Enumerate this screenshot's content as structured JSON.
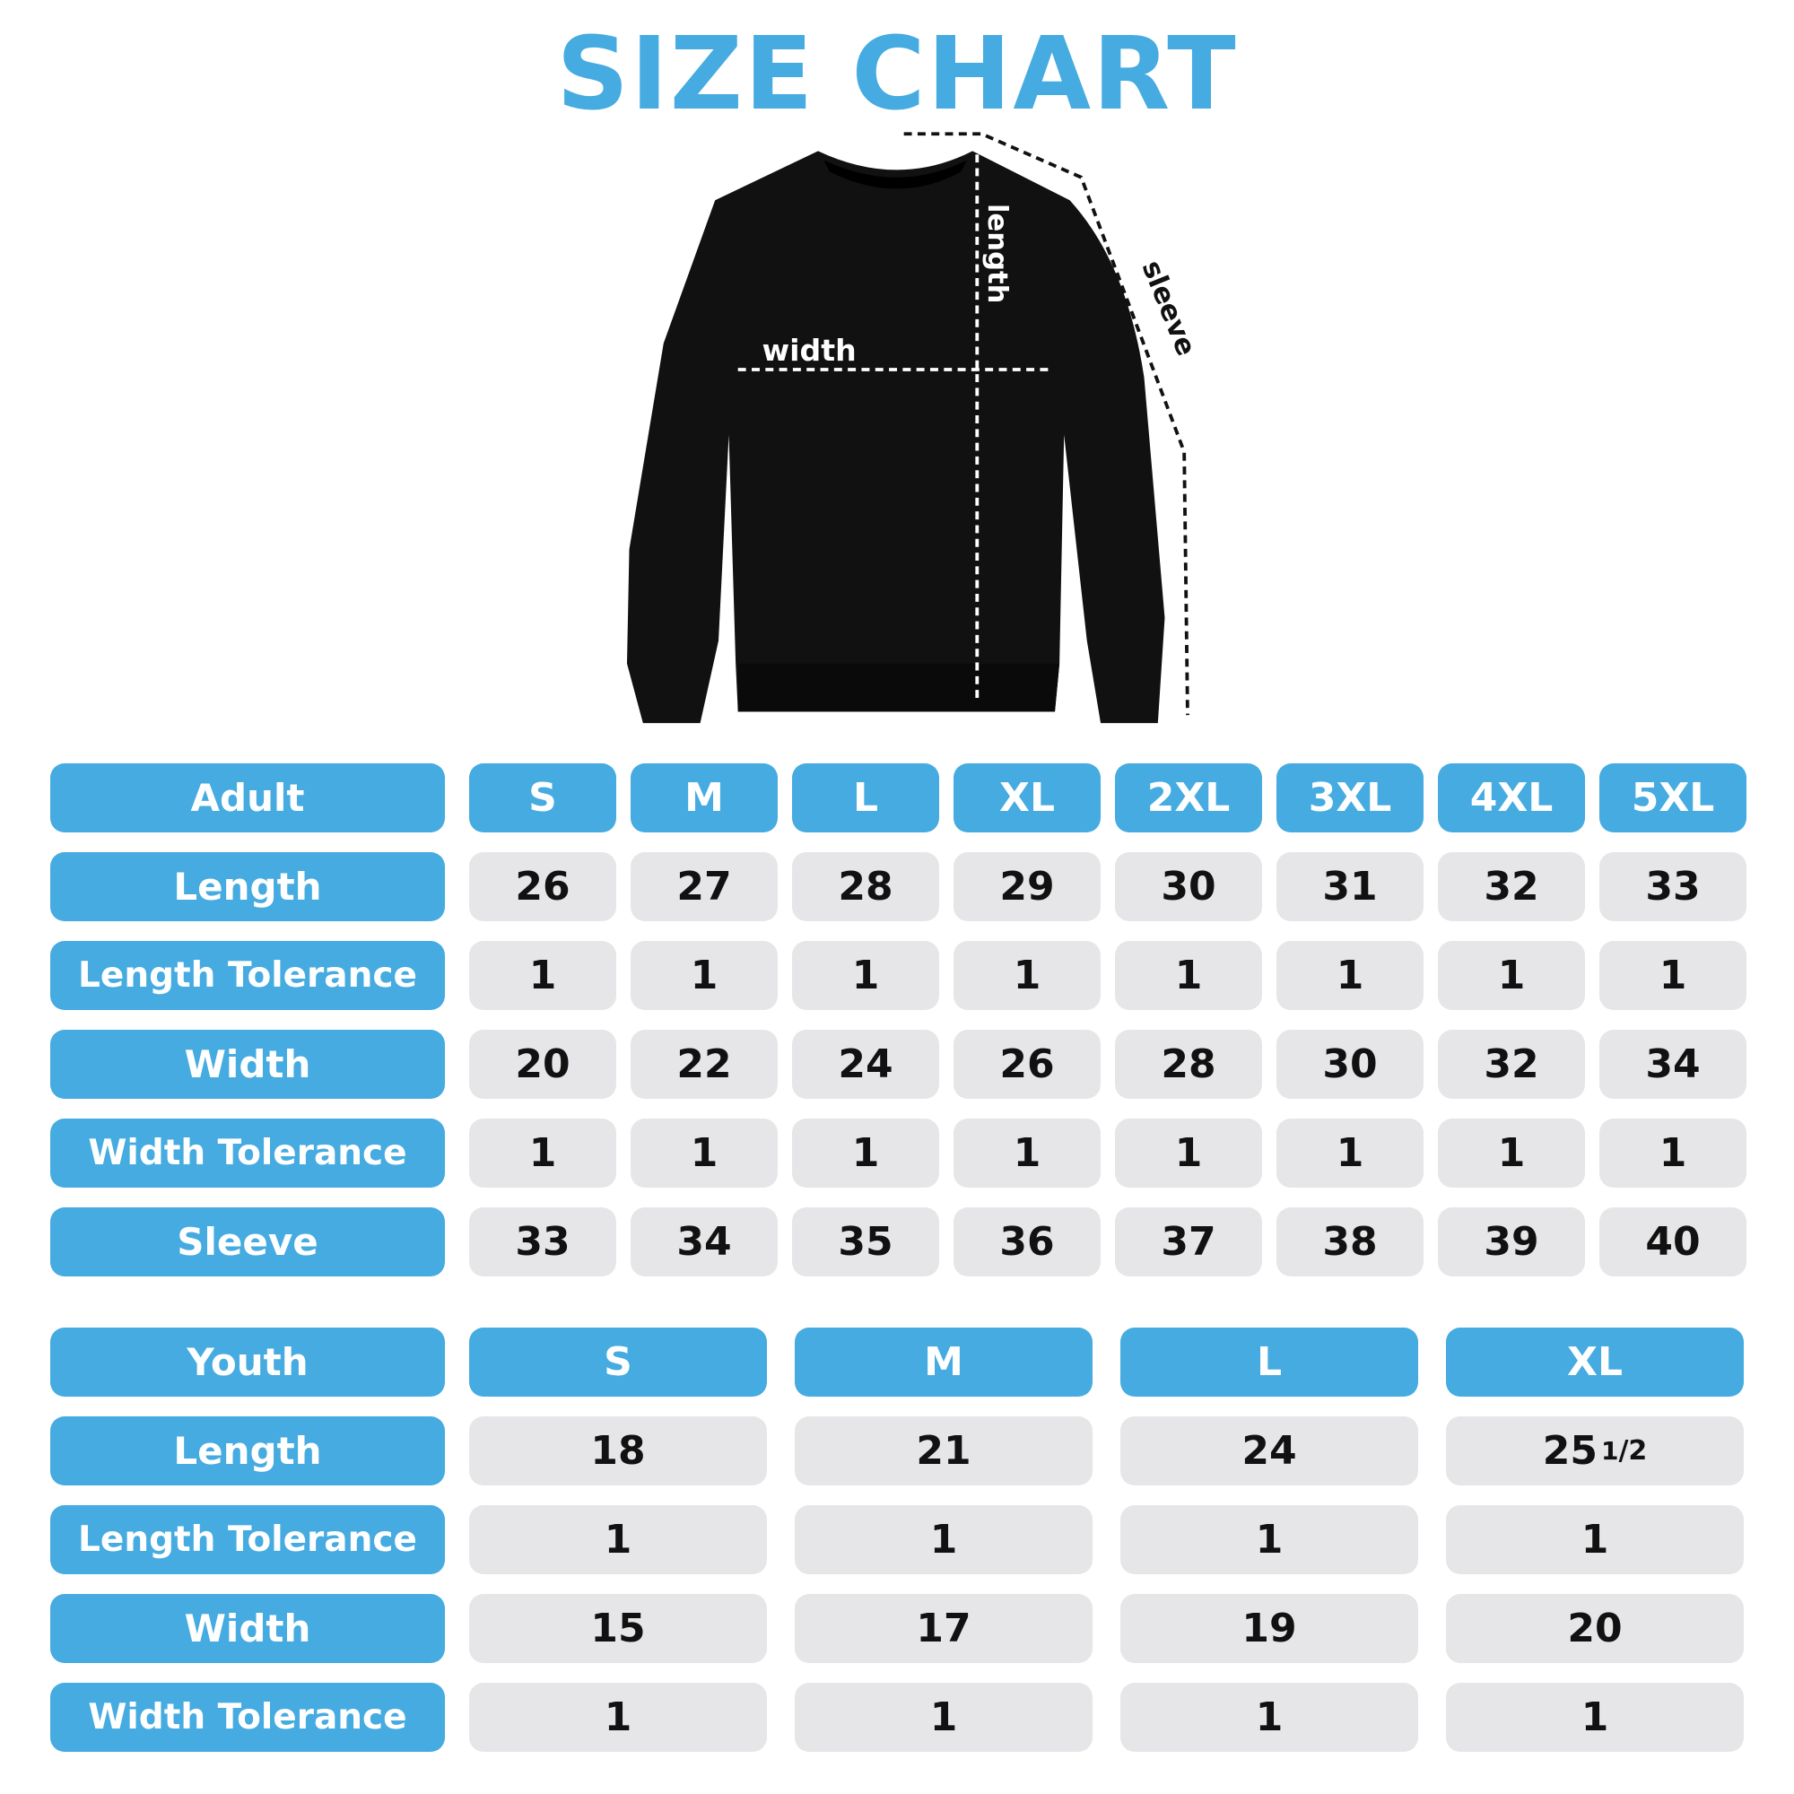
{
  "title": "SIZE CHART",
  "diagram_labels": {
    "width": "width",
    "length": "length",
    "sleeve": "sleeve"
  },
  "colors": {
    "accent": "#45abe0",
    "cell_bg": "#e6e6e8",
    "text": "#111111"
  },
  "adult": {
    "header": "Adult",
    "sizes": [
      "S",
      "M",
      "L",
      "XL",
      "2XL",
      "3XL",
      "4XL",
      "5XL"
    ],
    "rows": [
      {
        "label": "Length",
        "values": [
          "26",
          "27",
          "28",
          "29",
          "30",
          "31",
          "32",
          "33"
        ]
      },
      {
        "label": "Length Tolerance",
        "values": [
          "1",
          "1",
          "1",
          "1",
          "1",
          "1",
          "1",
          "1"
        ]
      },
      {
        "label": "Width",
        "values": [
          "20",
          "22",
          "24",
          "26",
          "28",
          "30",
          "32",
          "34"
        ]
      },
      {
        "label": "Width Tolerance",
        "values": [
          "1",
          "1",
          "1",
          "1",
          "1",
          "1",
          "1",
          "1"
        ]
      },
      {
        "label": "Sleeve",
        "values": [
          "33",
          "34",
          "35",
          "36",
          "37",
          "38",
          "39",
          "40"
        ]
      }
    ]
  },
  "youth": {
    "header": "Youth",
    "sizes": [
      "S",
      "M",
      "L",
      "XL"
    ],
    "rows": [
      {
        "label": "Length",
        "values": [
          "18",
          "21",
          "24",
          "25 1/2"
        ]
      },
      {
        "label": "Length Tolerance",
        "values": [
          "1",
          "1",
          "1",
          "1"
        ]
      },
      {
        "label": "Width",
        "values": [
          "15",
          "17",
          "19",
          "20"
        ]
      },
      {
        "label": "Width Tolerance",
        "values": [
          "1",
          "1",
          "1",
          "1"
        ]
      }
    ]
  }
}
